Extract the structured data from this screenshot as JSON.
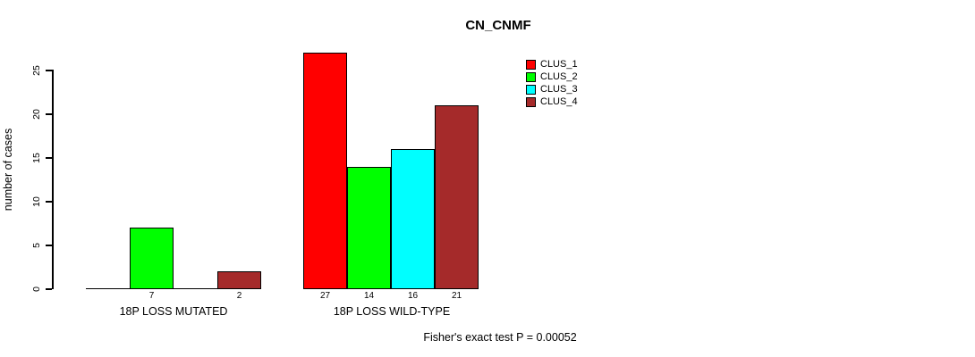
{
  "chart_data": {
    "type": "bar",
    "title": "CN_CNMF",
    "ylabel": "number of cases",
    "xlabel": "",
    "yticks": [
      0,
      5,
      10,
      15,
      20,
      25
    ],
    "ylim": [
      0,
      27
    ],
    "grid": false,
    "legend_position": "top-right",
    "categories": [
      "18P LOSS MUTATED",
      "18P LOSS WILD-TYPE"
    ],
    "series": [
      {
        "name": "CLUS_1",
        "color": "#FF0000",
        "values": [
          0,
          27
        ]
      },
      {
        "name": "CLUS_2",
        "color": "#00FF00",
        "values": [
          7,
          14
        ]
      },
      {
        "name": "CLUS_3",
        "color": "#00FFFF",
        "values": [
          0,
          16
        ]
      },
      {
        "name": "CLUS_4",
        "color": "#A52A2A",
        "values": [
          2,
          21
        ]
      }
    ],
    "bar_value_labels": [
      [
        "",
        "7",
        "",
        "2"
      ],
      [
        "27",
        "14",
        "16",
        "21"
      ]
    ],
    "footnote": "Fisher's exact test P = 0.00052"
  }
}
